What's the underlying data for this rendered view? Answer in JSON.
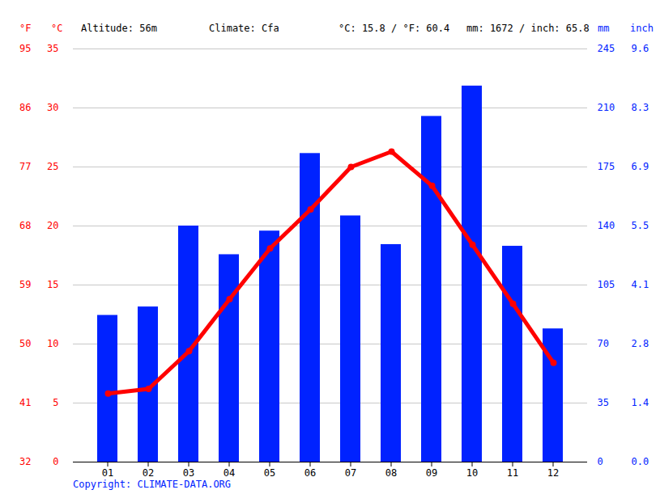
{
  "chart_data": {
    "type": "bar+line",
    "annotations": [
      "Altitude: 56m",
      "Climate: Cfa",
      "°C: 15.8 / °F: 60.4",
      "mm: 1672 / inch: 65.8"
    ],
    "ylabel": "°C",
    "ylabel_fahrenheit": "°F",
    "y2label": "mm",
    "y2label_inch": "inch",
    "caption": "Copyright: CLIMATE-DATA.ORG",
    "categories": [
      "01",
      "02",
      "03",
      "04",
      "05",
      "06",
      "07",
      "08",
      "09",
      "10",
      "11",
      "12"
    ],
    "series": [
      {
        "type": "bar",
        "axis": "y2",
        "color": "#0022ff",
        "values": [
          87,
          92,
          140,
          123,
          137,
          183,
          146,
          129,
          205,
          223,
          128,
          79
        ]
      },
      {
        "type": "line",
        "color": "#ff0000",
        "marker": "circle",
        "values": [
          5.8,
          6.2,
          9.4,
          13.8,
          18.1,
          21.4,
          25.0,
          26.3,
          23.4,
          18.4,
          13.4,
          8.4
        ]
      }
    ],
    "ylim": [
      0,
      35
    ],
    "yticks": [
      0,
      5,
      10,
      15,
      20,
      25,
      30,
      35
    ],
    "y_fahrenheit_ticks": [
      {
        "value": 0,
        "label": "32"
      },
      {
        "value": 5,
        "label": "41"
      },
      {
        "value": 10,
        "label": "50"
      },
      {
        "value": 15,
        "label": "59"
      },
      {
        "value": 20,
        "label": "68"
      },
      {
        "value": 25,
        "label": "77"
      },
      {
        "value": 30,
        "label": "86"
      },
      {
        "value": 35,
        "label": "95"
      }
    ],
    "y2lim": [
      0,
      245
    ],
    "y2ticks": [
      0,
      35,
      70,
      105,
      140,
      175,
      210,
      245
    ],
    "y2_inch_ticks": [
      {
        "value": 0,
        "label": "0.0"
      },
      {
        "value": 35,
        "label": "1.4"
      },
      {
        "value": 70,
        "label": "2.8"
      },
      {
        "value": 105,
        "label": "4.1"
      },
      {
        "value": 140,
        "label": "5.5"
      },
      {
        "value": 175,
        "label": "6.9"
      },
      {
        "value": 210,
        "label": "8.3"
      },
      {
        "value": 245,
        "label": "9.6"
      }
    ],
    "grid": true
  }
}
